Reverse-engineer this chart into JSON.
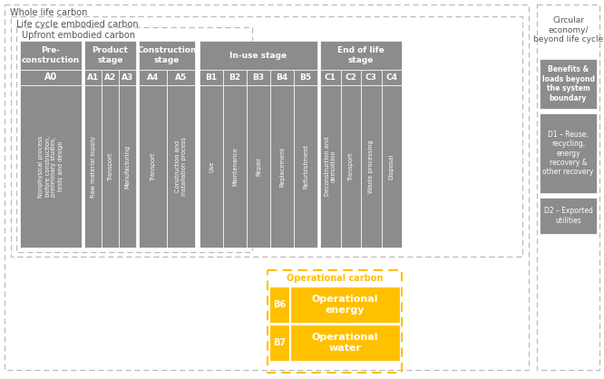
{
  "bg_color": "#ffffff",
  "gray_color": "#8c8c8c",
  "white": "#ffffff",
  "dark_gray_text": "#666666",
  "yellow": "#FFC000",
  "dash_color": "#bbbbbb",
  "title_color": "#555555",
  "outer_box_label": "Whole life carbon",
  "lce_label": "Life cycle embodied carbon",
  "upfront_label": "Upfront embodied carbon",
  "circular_title": "Circular\neconomy/\nbeyond life cycle",
  "detail_A0": "Nonphysical process\nbefore construction,\npreliminary studies,\ntests and design",
  "detail_A1": "Raw material supply",
  "detail_A2": "Transport",
  "detail_A3": "Manufacturing",
  "detail_A4": "Transport",
  "detail_A5": "Construction and\ninstallation process",
  "detail_B1": "Use",
  "detail_B2": "Maintenance",
  "detail_B3": "Repair",
  "detail_B4": "Replacement",
  "detail_B5": "Refurbishment",
  "detail_C1": "Deconstruction and\ndemolition",
  "detail_C2": "Transport",
  "detail_C3": "Waste processing",
  "detail_C4": "Disposal",
  "oc_label": "Operational carbon",
  "B6_label": "Operational\nenergy",
  "B7_label": "Operational\nwater",
  "benefits_label": "Benefits &\nloads beyond\nthe system\nboundary",
  "D1_label": "D1 – Reuse,\nrecycling,\nenergy\nrecovery &\nother recovery",
  "D2_label": "D2 – Exported\nutilities"
}
